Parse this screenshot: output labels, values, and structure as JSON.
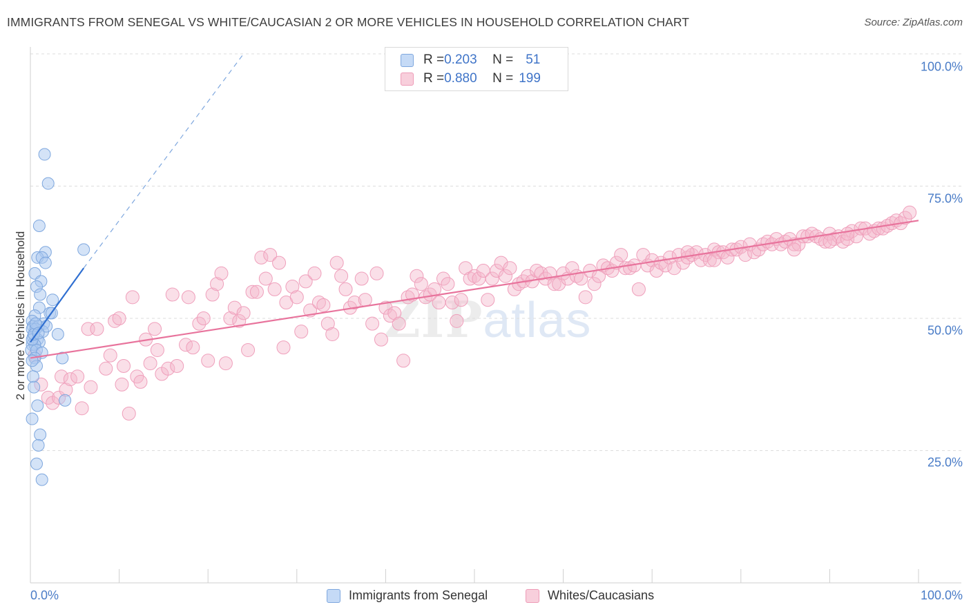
{
  "title": "IMMIGRANTS FROM SENEGAL VS WHITE/CAUCASIAN 2 OR MORE VEHICLES IN HOUSEHOLD CORRELATION CHART",
  "source": "Source: ZipAtlas.com",
  "watermark": {
    "zip": "ZIP",
    "atlas": "atlas"
  },
  "stats": {
    "rows": [
      {
        "r_label": "R = ",
        "r_value": "0.203",
        "n_label": "N = ",
        "n_value": "51",
        "color": "#aac8f0"
      },
      {
        "r_label": "R = ",
        "r_value": "0.880",
        "n_label": "N = ",
        "n_value": "199",
        "color": "#f5b8cc"
      }
    ]
  },
  "legend": {
    "items": [
      {
        "label": "Immigrants from Senegal",
        "color": "#aac8f0"
      },
      {
        "label": "Whites/Caucasians",
        "color": "#f5b8cc"
      }
    ]
  },
  "chart_data": {
    "type": "scatter",
    "title": "IMMIGRANTS FROM SENEGAL VS WHITE/CAUCASIAN 2 OR MORE VEHICLES IN HOUSEHOLD CORRELATION CHART",
    "xlabel": "",
    "ylabel": "2 or more Vehicles in Household",
    "x_tick_labels": [
      "0.0%",
      "100.0%"
    ],
    "y_tick_labels": [
      "25.0%",
      "50.0%",
      "75.0%",
      "100.0%"
    ],
    "xlim": [
      0,
      100
    ],
    "ylim": [
      0,
      100
    ],
    "grid": true,
    "legend_position": "bottom",
    "series": [
      {
        "name": "Immigrants from Senegal",
        "color": "#6b9ee0",
        "r": 0.203,
        "n": 51,
        "trend": {
          "x": [
            0,
            6
          ],
          "y": [
            45.5,
            59.5
          ],
          "dashed_extension_to": [
            24,
            100
          ]
        },
        "points": [
          [
            1.6,
            81
          ],
          [
            2,
            75.5
          ],
          [
            1,
            67.5
          ],
          [
            1.7,
            62.5
          ],
          [
            0.8,
            61.5
          ],
          [
            1.3,
            61.5
          ],
          [
            1.7,
            60.5
          ],
          [
            6,
            63
          ],
          [
            0.5,
            58.5
          ],
          [
            1.2,
            57
          ],
          [
            0.7,
            56
          ],
          [
            1.1,
            54.5
          ],
          [
            2.5,
            53.5
          ],
          [
            1,
            52
          ],
          [
            2.2,
            51
          ],
          [
            0.5,
            50.5
          ],
          [
            2.4,
            51
          ],
          [
            0.2,
            49.5
          ],
          [
            1.5,
            49
          ],
          [
            0.3,
            48.5
          ],
          [
            0.9,
            48.5
          ],
          [
            0.2,
            48
          ],
          [
            0.6,
            48
          ],
          [
            1.4,
            47.5
          ],
          [
            3.1,
            47
          ],
          [
            0.3,
            46.5
          ],
          [
            0.8,
            46
          ],
          [
            1,
            45.5
          ],
          [
            0.2,
            45
          ],
          [
            0.5,
            45
          ],
          [
            0.1,
            44
          ],
          [
            0.7,
            44
          ],
          [
            1.3,
            43.5
          ],
          [
            0.5,
            42.5
          ],
          [
            3.6,
            42.5
          ],
          [
            0.7,
            41
          ],
          [
            0.3,
            39
          ],
          [
            0.4,
            37
          ],
          [
            3.9,
            34.5
          ],
          [
            0.8,
            33.5
          ],
          [
            0.2,
            31
          ],
          [
            1.1,
            28
          ],
          [
            0.9,
            26
          ],
          [
            0.7,
            22.5
          ],
          [
            1.3,
            19.5
          ],
          [
            0.2,
            46
          ],
          [
            0.4,
            47
          ],
          [
            1.8,
            48.5
          ],
          [
            0.6,
            49
          ],
          [
            0.9,
            47.2
          ],
          [
            0.2,
            42
          ]
        ]
      },
      {
        "name": "Whites/Caucasians",
        "color": "#ee8fb0",
        "r": 0.88,
        "n": 199,
        "trend": {
          "x": [
            0,
            100
          ],
          "y": [
            42.5,
            68.5
          ]
        },
        "points": [
          [
            0.5,
            43
          ],
          [
            1.2,
            37.5
          ],
          [
            2,
            35
          ],
          [
            2.5,
            34
          ],
          [
            3.2,
            35
          ],
          [
            3.5,
            39
          ],
          [
            4,
            36.5
          ],
          [
            4.5,
            38.5
          ],
          [
            5.3,
            39
          ],
          [
            5.8,
            33
          ],
          [
            6.5,
            48
          ],
          [
            6.8,
            37
          ],
          [
            7.5,
            48
          ],
          [
            8.5,
            40.5
          ],
          [
            9,
            43
          ],
          [
            9.5,
            49.5
          ],
          [
            10,
            50
          ],
          [
            10.3,
            37.5
          ],
          [
            10.5,
            41
          ],
          [
            11.1,
            32
          ],
          [
            11.5,
            54
          ],
          [
            12,
            39
          ],
          [
            12.4,
            38
          ],
          [
            13,
            46
          ],
          [
            13.5,
            41.5
          ],
          [
            14,
            48
          ],
          [
            14.3,
            44
          ],
          [
            14.8,
            39.5
          ],
          [
            15.5,
            40.5
          ],
          [
            16,
            54.5
          ],
          [
            16.5,
            41
          ],
          [
            17.5,
            45
          ],
          [
            17.8,
            54
          ],
          [
            18.3,
            44.5
          ],
          [
            19,
            49
          ],
          [
            19.5,
            50
          ],
          [
            20,
            42
          ],
          [
            20.5,
            54.5
          ],
          [
            21,
            56.5
          ],
          [
            21.5,
            58.5
          ],
          [
            22,
            41.5
          ],
          [
            22.5,
            50
          ],
          [
            23,
            52
          ],
          [
            23.5,
            49.5
          ],
          [
            24,
            51
          ],
          [
            24.5,
            44
          ],
          [
            25,
            55
          ],
          [
            25.5,
            55
          ],
          [
            26,
            61.5
          ],
          [
            26.5,
            57.5
          ],
          [
            27,
            62
          ],
          [
            27.5,
            55.5
          ],
          [
            28,
            60.5
          ],
          [
            28.5,
            44.5
          ],
          [
            28.8,
            53
          ],
          [
            29.5,
            56
          ],
          [
            30,
            54
          ],
          [
            30.5,
            47.5
          ],
          [
            31,
            57
          ],
          [
            31.5,
            51.5
          ],
          [
            32,
            58.5
          ],
          [
            32.5,
            53
          ],
          [
            33,
            52.5
          ],
          [
            33.5,
            49
          ],
          [
            34,
            47
          ],
          [
            34.5,
            60.5
          ],
          [
            35,
            58
          ],
          [
            35.5,
            55.5
          ],
          [
            36,
            52
          ],
          [
            36.5,
            53
          ],
          [
            37.3,
            57.5
          ],
          [
            37.7,
            53.5
          ],
          [
            38.5,
            49
          ],
          [
            39,
            58.5
          ],
          [
            39.5,
            46
          ],
          [
            40,
            52
          ],
          [
            40.5,
            50.5
          ],
          [
            41,
            51
          ],
          [
            41.5,
            49
          ],
          [
            42,
            42
          ],
          [
            42.5,
            54
          ],
          [
            43,
            54.5
          ],
          [
            43.5,
            58
          ],
          [
            44,
            56.5
          ],
          [
            44.5,
            54
          ],
          [
            45,
            54.5
          ],
          [
            45.5,
            55.5
          ],
          [
            46,
            53
          ],
          [
            46.5,
            57.5
          ],
          [
            47,
            56.5
          ],
          [
            47.5,
            53
          ],
          [
            48,
            49.5
          ],
          [
            48.5,
            53.5
          ],
          [
            49,
            59.5
          ],
          [
            49.5,
            57.5
          ],
          [
            50,
            58
          ],
          [
            50.5,
            57.5
          ],
          [
            51,
            59
          ],
          [
            51.5,
            53.5
          ],
          [
            52,
            57.5
          ],
          [
            52.5,
            59
          ],
          [
            53,
            60.5
          ],
          [
            53.5,
            58
          ],
          [
            54,
            59.5
          ],
          [
            54.5,
            55.5
          ],
          [
            55,
            56.5
          ],
          [
            55.5,
            57
          ],
          [
            56,
            58
          ],
          [
            56.5,
            57
          ],
          [
            57,
            59
          ],
          [
            57.5,
            58.5
          ],
          [
            58,
            57.5
          ],
          [
            58.5,
            58.5
          ],
          [
            59,
            56.5
          ],
          [
            59.5,
            56.5
          ],
          [
            60,
            58.5
          ],
          [
            60.5,
            57.5
          ],
          [
            61,
            59.5
          ],
          [
            61.5,
            58
          ],
          [
            62,
            57.5
          ],
          [
            62.5,
            54
          ],
          [
            63,
            59
          ],
          [
            63.5,
            56.5
          ],
          [
            64,
            58
          ],
          [
            64.5,
            60
          ],
          [
            65,
            59.5
          ],
          [
            65.5,
            59
          ],
          [
            66,
            60.5
          ],
          [
            66.5,
            62
          ],
          [
            67,
            59.5
          ],
          [
            67.5,
            59.5
          ],
          [
            68,
            60
          ],
          [
            68.5,
            55.5
          ],
          [
            69,
            62
          ],
          [
            69.5,
            60
          ],
          [
            70,
            61
          ],
          [
            70.5,
            59
          ],
          [
            71,
            60.5
          ],
          [
            71.5,
            60
          ],
          [
            72,
            61.5
          ],
          [
            72.5,
            59.5
          ],
          [
            73,
            62
          ],
          [
            73.5,
            60.5
          ],
          [
            74,
            61.5
          ],
          [
            74.5,
            62
          ],
          [
            75,
            62.5
          ],
          [
            75.5,
            61
          ],
          [
            76,
            62
          ],
          [
            76.5,
            61
          ],
          [
            77,
            63
          ],
          [
            77.5,
            62.5
          ],
          [
            78,
            62.5
          ],
          [
            78.5,
            61.5
          ],
          [
            79,
            63
          ],
          [
            79.5,
            63
          ],
          [
            80,
            63.5
          ],
          [
            80.5,
            62
          ],
          [
            81,
            64
          ],
          [
            81.5,
            62.5
          ],
          [
            82,
            63
          ],
          [
            82.5,
            64
          ],
          [
            83,
            64.5
          ],
          [
            83.5,
            64
          ],
          [
            84,
            65
          ],
          [
            84.5,
            64
          ],
          [
            85,
            64.5
          ],
          [
            85.5,
            65
          ],
          [
            86,
            64
          ],
          [
            86.5,
            64
          ],
          [
            87,
            65.5
          ],
          [
            87.5,
            65.5
          ],
          [
            88,
            66
          ],
          [
            88.5,
            65.5
          ],
          [
            89,
            65
          ],
          [
            89.5,
            64.5
          ],
          [
            90,
            66
          ],
          [
            90.5,
            65
          ],
          [
            91,
            65.5
          ],
          [
            91.5,
            64.5
          ],
          [
            92,
            65
          ],
          [
            92.5,
            66.5
          ],
          [
            93,
            65.5
          ],
          [
            93.5,
            67
          ],
          [
            94,
            67
          ],
          [
            94.5,
            66
          ],
          [
            95,
            66.5
          ],
          [
            95.5,
            67
          ],
          [
            96,
            67
          ],
          [
            96.5,
            67.5
          ],
          [
            97,
            68
          ],
          [
            97.5,
            68.5
          ],
          [
            98,
            68
          ],
          [
            98.5,
            69
          ],
          [
            99,
            70
          ],
          [
            74,
            62.5
          ],
          [
            77,
            61
          ],
          [
            86,
            63
          ],
          [
            90,
            64.5
          ],
          [
            92,
            66
          ]
        ]
      }
    ]
  }
}
